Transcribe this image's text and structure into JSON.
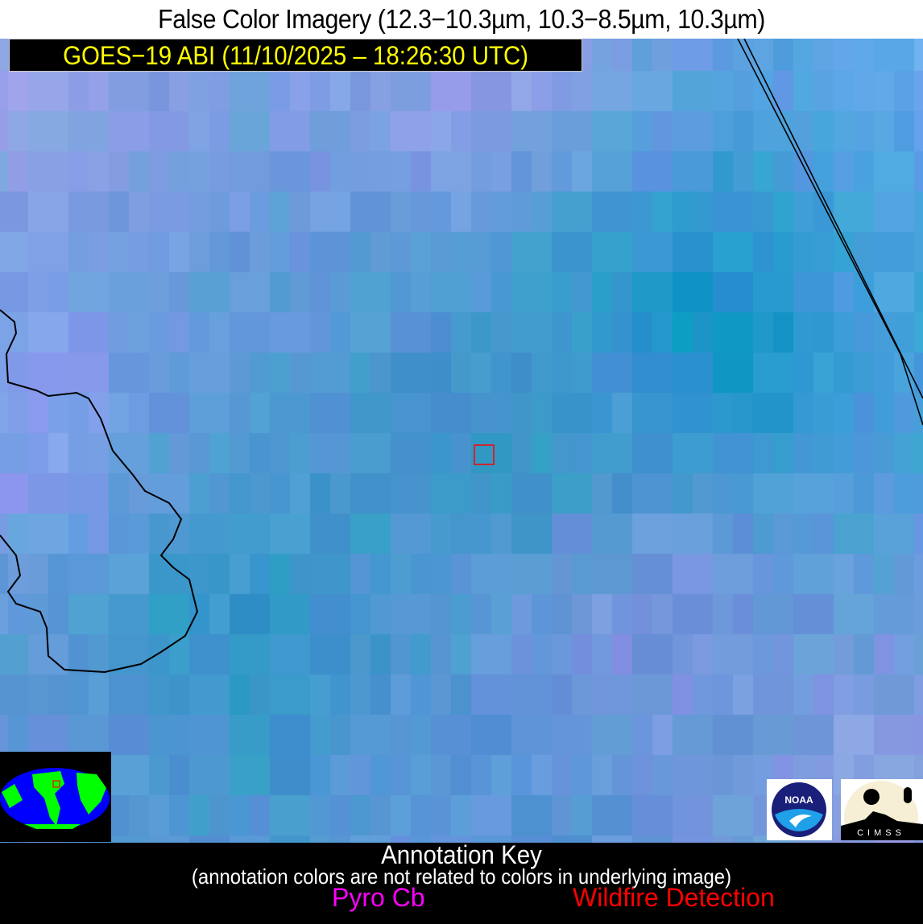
{
  "title": "False Color Imagery (12.3−10.3µm, 10.3−8.5µm, 10.3µm)",
  "satellite_label": "GOES−19 ABI (11/10/2025 – 18:26:30 UTC)",
  "logos": {
    "noaa": "NOAA",
    "cimss": "CIMSS"
  },
  "annotation_key": {
    "heading": "Annotation Key",
    "note": "(annotation colors are not related to colors in underlying image)",
    "items": [
      {
        "label": "Pyro Cb",
        "color": "#ff00ff"
      },
      {
        "label": "Wildfire Detection",
        "color": "#ff0000"
      }
    ]
  },
  "colors": {
    "label_text": "#ffff00",
    "coastline": "#000000",
    "target_box": "#ff0000",
    "globe_ocean": "#0000ff",
    "globe_land": "#00ff00"
  }
}
